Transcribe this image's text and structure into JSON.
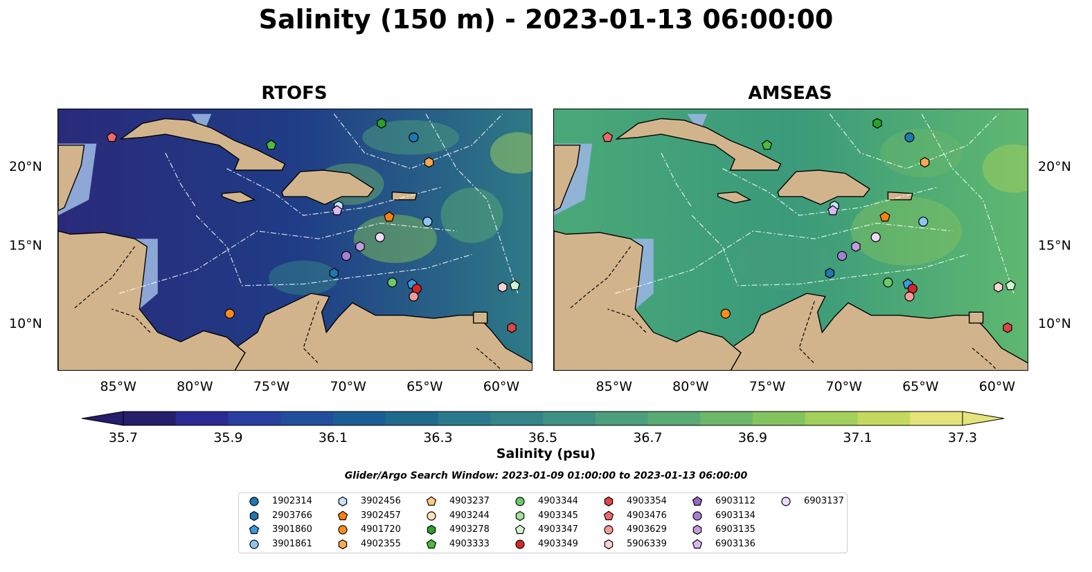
{
  "title": "Salinity (150 m) - 2023-01-13 06:00:00",
  "panels": [
    {
      "title": "RTOFS",
      "ocean_color": "#1f3c86",
      "ocean_alt": "#2a2a7a",
      "east_color": "#2e7a86"
    },
    {
      "title": "AMSEAS",
      "ocean_color": "#3a9a7a",
      "ocean_alt": "#4aa878",
      "east_color": "#5fb870"
    }
  ],
  "land_color": "#d2b48c",
  "shelf_color": "#98b5e0",
  "lat_labels": [
    "20°N",
    "15°N",
    "10°N"
  ],
  "lon_labels": [
    "85°W",
    "80°W",
    "75°W",
    "70°W",
    "65°W",
    "60°W"
  ],
  "colorbar": {
    "label": "Salinity (psu)",
    "ticks": [
      "35.7",
      "35.9",
      "36.1",
      "36.3",
      "36.5",
      "36.7",
      "36.9",
      "37.1",
      "37.3"
    ],
    "min": 35.7,
    "max": 37.3,
    "colors": [
      "#241e6b",
      "#2a2a93",
      "#283fa0",
      "#214f9e",
      "#1a5f94",
      "#1f6b8e",
      "#2a7a8c",
      "#338588",
      "#3e9183",
      "#4c9e7c",
      "#5aaa73",
      "#6db86a",
      "#84c45f",
      "#a3cf5b",
      "#c5d95e",
      "#e5e47a"
    ]
  },
  "search_window": "Glider/Argo Search Window: 2023-01-09 01:00:00 to 2023-01-13 06:00:00",
  "legend": [
    {
      "id": "1902314",
      "shape": "circle",
      "color": "#1f77b4"
    },
    {
      "id": "2903766",
      "shape": "hexagon",
      "color": "#1f77b4"
    },
    {
      "id": "3901860",
      "shape": "pentagon",
      "color": "#3a9be0"
    },
    {
      "id": "3901861",
      "shape": "circle",
      "color": "#8ec5f0"
    },
    {
      "id": "3902456",
      "shape": "hexagon",
      "color": "#c6e4fa"
    },
    {
      "id": "3902457",
      "shape": "pentagon",
      "color": "#ff7f0e"
    },
    {
      "id": "4901720",
      "shape": "circle",
      "color": "#ff8c1a"
    },
    {
      "id": "4902355",
      "shape": "hexagon",
      "color": "#ffa64d"
    },
    {
      "id": "4903237",
      "shape": "pentagon",
      "color": "#ffc98a"
    },
    {
      "id": "4903244",
      "shape": "circle",
      "color": "#ffe0bd"
    },
    {
      "id": "4903278",
      "shape": "hexagon",
      "color": "#2ca02c"
    },
    {
      "id": "4903333",
      "shape": "pentagon",
      "color": "#4cbb3c"
    },
    {
      "id": "4903344",
      "shape": "circle",
      "color": "#6cc96c"
    },
    {
      "id": "4903345",
      "shape": "hexagon",
      "color": "#a5e0a0"
    },
    {
      "id": "4903347",
      "shape": "pentagon",
      "color": "#d3f5cf"
    },
    {
      "id": "4903349",
      "shape": "circle",
      "color": "#d62728"
    },
    {
      "id": "4903354",
      "shape": "hexagon",
      "color": "#e04545"
    },
    {
      "id": "4903476",
      "shape": "pentagon",
      "color": "#ee6a6a"
    },
    {
      "id": "4903629",
      "shape": "circle",
      "color": "#f59a9a"
    },
    {
      "id": "5906339",
      "shape": "hexagon",
      "color": "#fcd2d2"
    },
    {
      "id": "6903112",
      "shape": "pentagon",
      "color": "#9467bd"
    },
    {
      "id": "6903134",
      "shape": "circle",
      "color": "#a87fd0"
    },
    {
      "id": "6903135",
      "shape": "hexagon",
      "color": "#c39be0"
    },
    {
      "id": "6903136",
      "shape": "pentagon",
      "color": "#dab8f0"
    },
    {
      "id": "6903137",
      "shape": "circle",
      "color": "#efd8fb"
    }
  ],
  "floats": [
    {
      "id": "4903476",
      "lon": -85.5,
      "lat": 22.0
    },
    {
      "id": "4903333",
      "lon": -75.1,
      "lat": 21.5
    },
    {
      "id": "4903278",
      "lon": -67.9,
      "lat": 22.9
    },
    {
      "id": "1902314",
      "lon": -65.8,
      "lat": 22.0
    },
    {
      "id": "4902355",
      "lon": -64.8,
      "lat": 20.4
    },
    {
      "id": "3902456",
      "lon": -70.7,
      "lat": 17.6
    },
    {
      "id": "6903136",
      "lon": -70.8,
      "lat": 17.3
    },
    {
      "id": "3902457",
      "lon": -67.4,
      "lat": 16.9
    },
    {
      "id": "3901861",
      "lon": -64.9,
      "lat": 16.6
    },
    {
      "id": "6903137",
      "lon": -68.0,
      "lat": 15.6
    },
    {
      "id": "6903135",
      "lon": -69.3,
      "lat": 15.0
    },
    {
      "id": "6903134",
      "lon": -70.2,
      "lat": 14.4
    },
    {
      "id": "2903766",
      "lon": -71.0,
      "lat": 13.3
    },
    {
      "id": "4903344",
      "lon": -67.2,
      "lat": 12.7
    },
    {
      "id": "3901860",
      "lon": -65.9,
      "lat": 12.6
    },
    {
      "id": "4903349",
      "lon": -65.6,
      "lat": 12.3
    },
    {
      "id": "4903629",
      "lon": -65.8,
      "lat": 11.8
    },
    {
      "id": "5906339",
      "lon": -60.0,
      "lat": 12.4
    },
    {
      "id": "4903347",
      "lon": -59.2,
      "lat": 12.5
    },
    {
      "id": "4901720",
      "lon": -77.8,
      "lat": 10.7
    },
    {
      "id": "4903354",
      "lon": -59.4,
      "lat": 9.8
    }
  ]
}
